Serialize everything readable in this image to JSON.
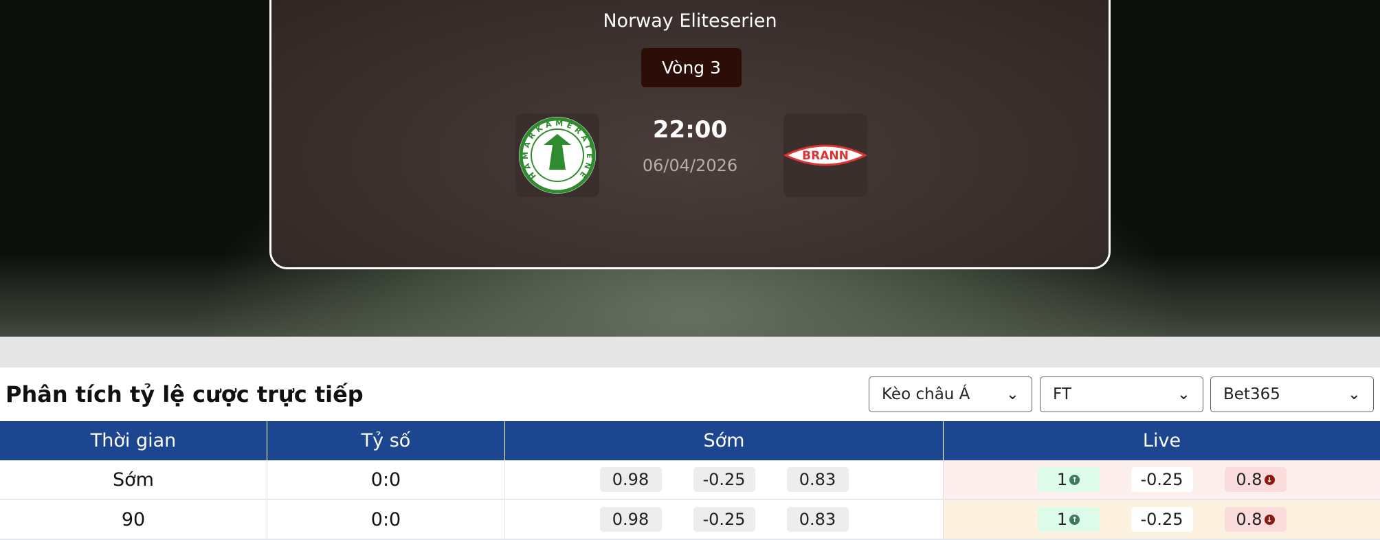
{
  "match": {
    "league": "Norway Eliteserien",
    "round": "Vòng 3",
    "time": "22:00",
    "date": "06/04/2026",
    "home": {
      "name": "Hamarkameratene",
      "logo_text": "HAMARKAMERATENE 1918"
    },
    "away": {
      "name": "Brann",
      "logo_text": "BRANN"
    }
  },
  "odds": {
    "title": "Phân tích tỷ lệ cược trực tiếp",
    "filters": [
      {
        "value": "Kèo châu Á"
      },
      {
        "value": "FT"
      },
      {
        "value": "Bet365"
      }
    ],
    "columns": [
      "Thời gian",
      "Tỷ số",
      "Sớm",
      "Live"
    ],
    "rows": [
      {
        "time": "Sớm",
        "score": "0:0",
        "early": [
          "0.98",
          "-0.25",
          "0.83"
        ],
        "live": [
          "1",
          "-0.25",
          "0.8"
        ],
        "bg": "#fdf0ec"
      },
      {
        "time": "90",
        "score": "0:0",
        "early": [
          "0.98",
          "-0.25",
          "0.83"
        ],
        "live": [
          "1",
          "-0.25",
          "0.8"
        ],
        "bg": "#fdf1df"
      }
    ]
  },
  "colors": {
    "header": "#1d4690",
    "up": "#3f7a5e",
    "down": "#8a1a10"
  }
}
